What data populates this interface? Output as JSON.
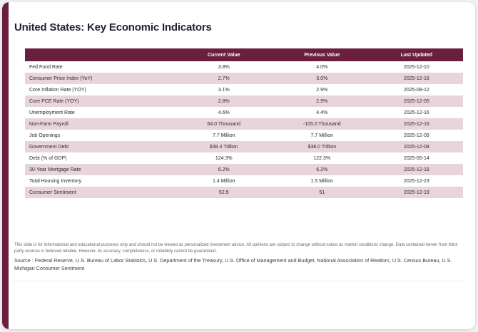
{
  "colors": {
    "accent": "#6b1f3f",
    "row_alt": "#e8d5dc",
    "title_text": "#232334"
  },
  "header": {
    "title": "United States: Key Economic Indicators"
  },
  "table": {
    "columns": [
      "Current Value",
      "Previous Value",
      "Last Updated"
    ],
    "rows": [
      {
        "label": "Fed Fund Rate",
        "current": "3.8%",
        "previous": "4.0%",
        "updated": "2025-12-10"
      },
      {
        "label": "Consumer Price Index (YoY)",
        "current": "2.7%",
        "previous": "3.0%",
        "updated": "2025-12-18"
      },
      {
        "label": "Core Inflation Rate (YOY)",
        "current": "3.1%",
        "previous": "2.9%",
        "updated": "2025-08-12"
      },
      {
        "label": "Core PCE Rate (YOY)",
        "current": "2.8%",
        "previous": "2.9%",
        "updated": "2025-12-05"
      },
      {
        "label": "Unemployment Rate",
        "current": "4.6%",
        "previous": "4.4%",
        "updated": "2025-12-16"
      },
      {
        "label": "Non-Farm Payroll",
        "current": "64.0 Thousand",
        "previous": "-105.0 Thousand",
        "updated": "2025-12-16"
      },
      {
        "label": "Job Openings",
        "current": "7.7 Million",
        "previous": "7.7 Million",
        "updated": "2025-12-09"
      },
      {
        "label": "Government Debt",
        "current": "$38.4 Trillion",
        "previous": "$38.0 Trillion",
        "updated": "2025-12-08"
      },
      {
        "label": "Debt (% of GDP)",
        "current": "124.3%",
        "previous": "122.3%",
        "updated": "2025-05-14"
      },
      {
        "label": "30-Year Mortgage Rate",
        "current": "6.2%",
        "previous": "6.2%",
        "updated": "2025-12-18"
      },
      {
        "label": "Total Housing Inventory",
        "current": "1.4 Million",
        "previous": "1.5 Million",
        "updated": "2025-12-23"
      },
      {
        "label": "Consumer Sentiment",
        "current": "52.9",
        "previous": "51",
        "updated": "2025-12-19"
      }
    ]
  },
  "footer": {
    "disclaimer": "This slide is for informational and educational purposes only and should not be viewed as personalized investment advice. All opinions are subject to change without notice as market conditions change. Data contained herein from third-party sources is believed reliable. However, its accuracy, completeness, or reliability cannot be guaranteed.",
    "source": "Source : Federal Reserve, U.S. Bureau of Labor Statistics, U.S. Department of the Treasury, U.S. Office of Management and Budget, National Association of Realtors, U.S. Census Bureau, U.S. Michigan Consumer Sentiment"
  }
}
